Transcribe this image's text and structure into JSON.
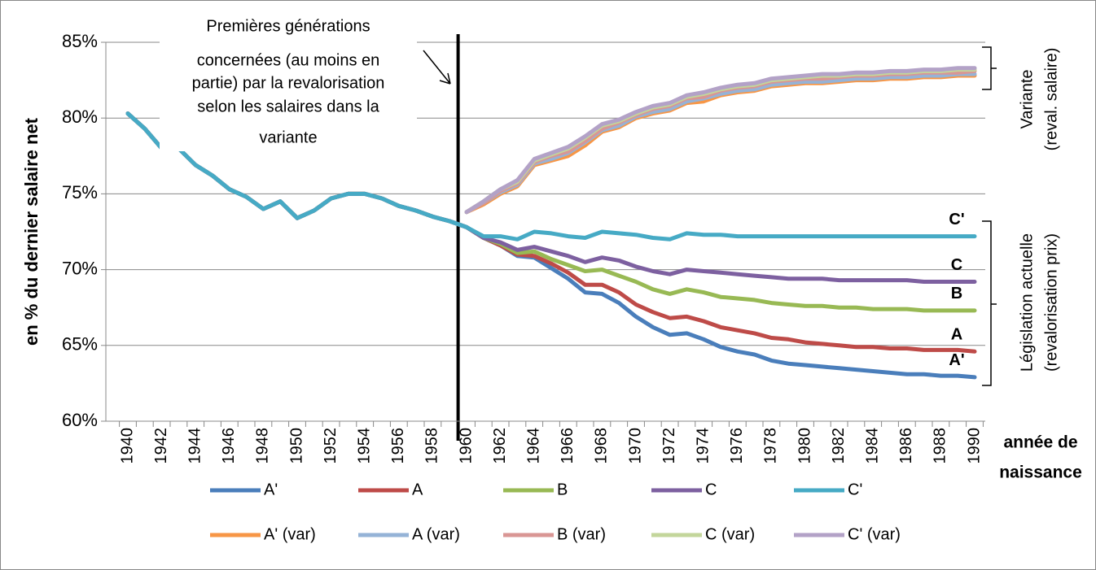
{
  "chart_data": {
    "type": "line",
    "y_axis_label": "en % du dernier salaire net",
    "x_axis_label": [
      "année de",
      "naissance"
    ],
    "annotation": [
      "Premières générations",
      "concernées (au moins en",
      "partie) par la revalorisation",
      "selon les salaires dans la",
      "variante"
    ],
    "bracket_labels": [
      [
        "Variante",
        "(reval. salaire)"
      ],
      [
        "Législation actuelle",
        "(revalorisation prix)"
      ]
    ],
    "categories": [
      "1940",
      null,
      "1942",
      null,
      "1944",
      null,
      "1946",
      null,
      "1948",
      null,
      "1950",
      null,
      "1952",
      null,
      "1954",
      null,
      "1956",
      null,
      "1958",
      null,
      "1960",
      null,
      "1962",
      null,
      "1964",
      null,
      "1966",
      null,
      "1968",
      null,
      "1970",
      null,
      "1972",
      null,
      "1974",
      null,
      "1976",
      null,
      "1978",
      null,
      "1980",
      null,
      "1982",
      null,
      "1984",
      null,
      "1986",
      null,
      "1988",
      null,
      "1990"
    ],
    "ylim": [
      60,
      85
    ],
    "yticks": [
      {
        "value": 60,
        "label": "60%"
      },
      {
        "value": 65,
        "label": "65%"
      },
      {
        "value": 70,
        "label": "70%"
      },
      {
        "value": 75,
        "label": "75%"
      },
      {
        "value": 80,
        "label": "80%"
      },
      {
        "value": 85,
        "label": "85%"
      }
    ],
    "grid": true,
    "legend": "bottom",
    "series": [
      {
        "name": "A'",
        "color": "#4a7ebb",
        "values": [
          80.3,
          79.3,
          78.0,
          78.0,
          76.9,
          76.2,
          75.3,
          74.8,
          74.0,
          74.5,
          73.4,
          73.9,
          74.7,
          75.0,
          75.0,
          74.7,
          74.2,
          73.9,
          73.5,
          73.2,
          72.8,
          72.1,
          71.6,
          70.9,
          70.8,
          70.1,
          69.4,
          68.5,
          68.4,
          67.8,
          66.9,
          66.2,
          65.7,
          65.8,
          65.4,
          64.9,
          64.6,
          64.4,
          64.0,
          63.8,
          63.7,
          63.6,
          63.5,
          63.4,
          63.3,
          63.2,
          63.1,
          63.1,
          63.0,
          63.0,
          62.9
        ]
      },
      {
        "name": "A",
        "color": "#be4b48",
        "values": [
          80.3,
          79.3,
          78.0,
          78.0,
          76.9,
          76.2,
          75.3,
          74.8,
          74.0,
          74.5,
          73.4,
          73.9,
          74.7,
          75.0,
          75.0,
          74.7,
          74.2,
          73.9,
          73.5,
          73.2,
          72.8,
          72.1,
          71.6,
          71.0,
          70.9,
          70.4,
          69.8,
          69.0,
          69.0,
          68.5,
          67.7,
          67.2,
          66.8,
          66.9,
          66.6,
          66.2,
          66.0,
          65.8,
          65.5,
          65.4,
          65.2,
          65.1,
          65.0,
          64.9,
          64.9,
          64.8,
          64.8,
          64.7,
          64.7,
          64.7,
          64.6
        ]
      },
      {
        "name": "B",
        "color": "#98b954",
        "values": [
          80.3,
          79.3,
          78.0,
          78.0,
          76.9,
          76.2,
          75.3,
          74.8,
          74.0,
          74.5,
          73.4,
          73.9,
          74.7,
          75.0,
          75.0,
          74.7,
          74.2,
          73.9,
          73.5,
          73.2,
          72.8,
          72.1,
          71.7,
          71.1,
          71.2,
          70.7,
          70.3,
          69.9,
          70.0,
          69.6,
          69.2,
          68.7,
          68.4,
          68.7,
          68.5,
          68.2,
          68.1,
          68.0,
          67.8,
          67.7,
          67.6,
          67.6,
          67.5,
          67.5,
          67.4,
          67.4,
          67.4,
          67.3,
          67.3,
          67.3,
          67.3
        ]
      },
      {
        "name": "C",
        "color": "#7d60a0",
        "values": [
          80.3,
          79.3,
          78.0,
          78.0,
          76.9,
          76.2,
          75.3,
          74.8,
          74.0,
          74.5,
          73.4,
          73.9,
          74.7,
          75.0,
          75.0,
          74.7,
          74.2,
          73.9,
          73.5,
          73.2,
          72.8,
          72.1,
          71.8,
          71.3,
          71.5,
          71.2,
          70.9,
          70.5,
          70.8,
          70.6,
          70.2,
          69.9,
          69.7,
          70.0,
          69.9,
          69.8,
          69.7,
          69.6,
          69.5,
          69.4,
          69.4,
          69.4,
          69.3,
          69.3,
          69.3,
          69.3,
          69.3,
          69.2,
          69.2,
          69.2,
          69.2
        ]
      },
      {
        "name": "C'",
        "color": "#46aac5",
        "values": [
          80.3,
          79.3,
          78.0,
          78.0,
          76.9,
          76.2,
          75.3,
          74.8,
          74.0,
          74.5,
          73.4,
          73.9,
          74.7,
          75.0,
          75.0,
          74.7,
          74.2,
          73.9,
          73.5,
          73.2,
          72.8,
          72.2,
          72.2,
          72.0,
          72.5,
          72.4,
          72.2,
          72.1,
          72.5,
          72.4,
          72.3,
          72.1,
          72.0,
          72.4,
          72.3,
          72.3,
          72.2,
          72.2,
          72.2,
          72.2,
          72.2,
          72.2,
          72.2,
          72.2,
          72.2,
          72.2,
          72.2,
          72.2,
          72.2,
          72.2,
          72.2
        ]
      },
      {
        "name": "A' (var)",
        "color": "#f79646",
        "values": [
          null,
          null,
          null,
          null,
          null,
          null,
          null,
          null,
          null,
          null,
          null,
          null,
          null,
          null,
          null,
          null,
          null,
          null,
          null,
          null,
          73.8,
          74.3,
          75.0,
          75.5,
          76.9,
          77.2,
          77.5,
          78.2,
          79.1,
          79.4,
          80.0,
          80.3,
          80.5,
          81.0,
          81.1,
          81.5,
          81.7,
          81.8,
          82.1,
          82.2,
          82.3,
          82.3,
          82.4,
          82.5,
          82.5,
          82.6,
          82.6,
          82.7,
          82.7,
          82.8,
          82.8
        ]
      },
      {
        "name": "A (var)",
        "color": "#95b3d7",
        "values": [
          null,
          null,
          null,
          null,
          null,
          null,
          null,
          null,
          null,
          null,
          null,
          null,
          null,
          null,
          null,
          null,
          null,
          null,
          null,
          null,
          73.8,
          74.4,
          75.1,
          75.6,
          77.0,
          77.3,
          77.7,
          78.4,
          79.2,
          79.5,
          80.1,
          80.4,
          80.6,
          81.1,
          81.3,
          81.6,
          81.8,
          81.9,
          82.2,
          82.3,
          82.4,
          82.4,
          82.5,
          82.6,
          82.6,
          82.7,
          82.7,
          82.8,
          82.8,
          82.9,
          82.9
        ]
      },
      {
        "name": "B (var)",
        "color": "#d99694",
        "values": [
          null,
          null,
          null,
          null,
          null,
          null,
          null,
          null,
          null,
          null,
          null,
          null,
          null,
          null,
          null,
          null,
          null,
          null,
          null,
          null,
          73.8,
          74.4,
          75.2,
          75.7,
          77.1,
          77.5,
          77.8,
          78.5,
          79.3,
          79.7,
          80.2,
          80.6,
          80.8,
          81.3,
          81.4,
          81.8,
          82.0,
          82.1,
          82.4,
          82.5,
          82.6,
          82.6,
          82.7,
          82.8,
          82.8,
          82.9,
          82.9,
          83.0,
          83.0,
          83.0,
          83.1
        ]
      },
      {
        "name": "C (var)",
        "color": "#c3d69b",
        "values": [
          null,
          null,
          null,
          null,
          null,
          null,
          null,
          null,
          null,
          null,
          null,
          null,
          null,
          null,
          null,
          null,
          null,
          null,
          null,
          null,
          73.8,
          74.5,
          75.3,
          75.8,
          77.2,
          77.6,
          78.0,
          78.7,
          79.5,
          79.8,
          80.3,
          80.7,
          80.9,
          81.4,
          81.6,
          81.9,
          82.1,
          82.2,
          82.5,
          82.6,
          82.7,
          82.8,
          82.8,
          82.9,
          82.9,
          83.0,
          83.0,
          83.1,
          83.1,
          83.2,
          83.2
        ]
      },
      {
        "name": "C' (var)",
        "color": "#b3a2c7",
        "values": [
          null,
          null,
          null,
          null,
          null,
          null,
          null,
          null,
          null,
          null,
          null,
          null,
          null,
          null,
          null,
          null,
          null,
          null,
          null,
          null,
          73.8,
          74.5,
          75.3,
          75.9,
          77.3,
          77.7,
          78.1,
          78.8,
          79.6,
          79.9,
          80.4,
          80.8,
          81.0,
          81.5,
          81.7,
          82.0,
          82.2,
          82.3,
          82.6,
          82.7,
          82.8,
          82.9,
          82.9,
          83.0,
          83.0,
          83.1,
          83.1,
          83.2,
          83.2,
          83.3,
          83.3
        ]
      }
    ]
  }
}
